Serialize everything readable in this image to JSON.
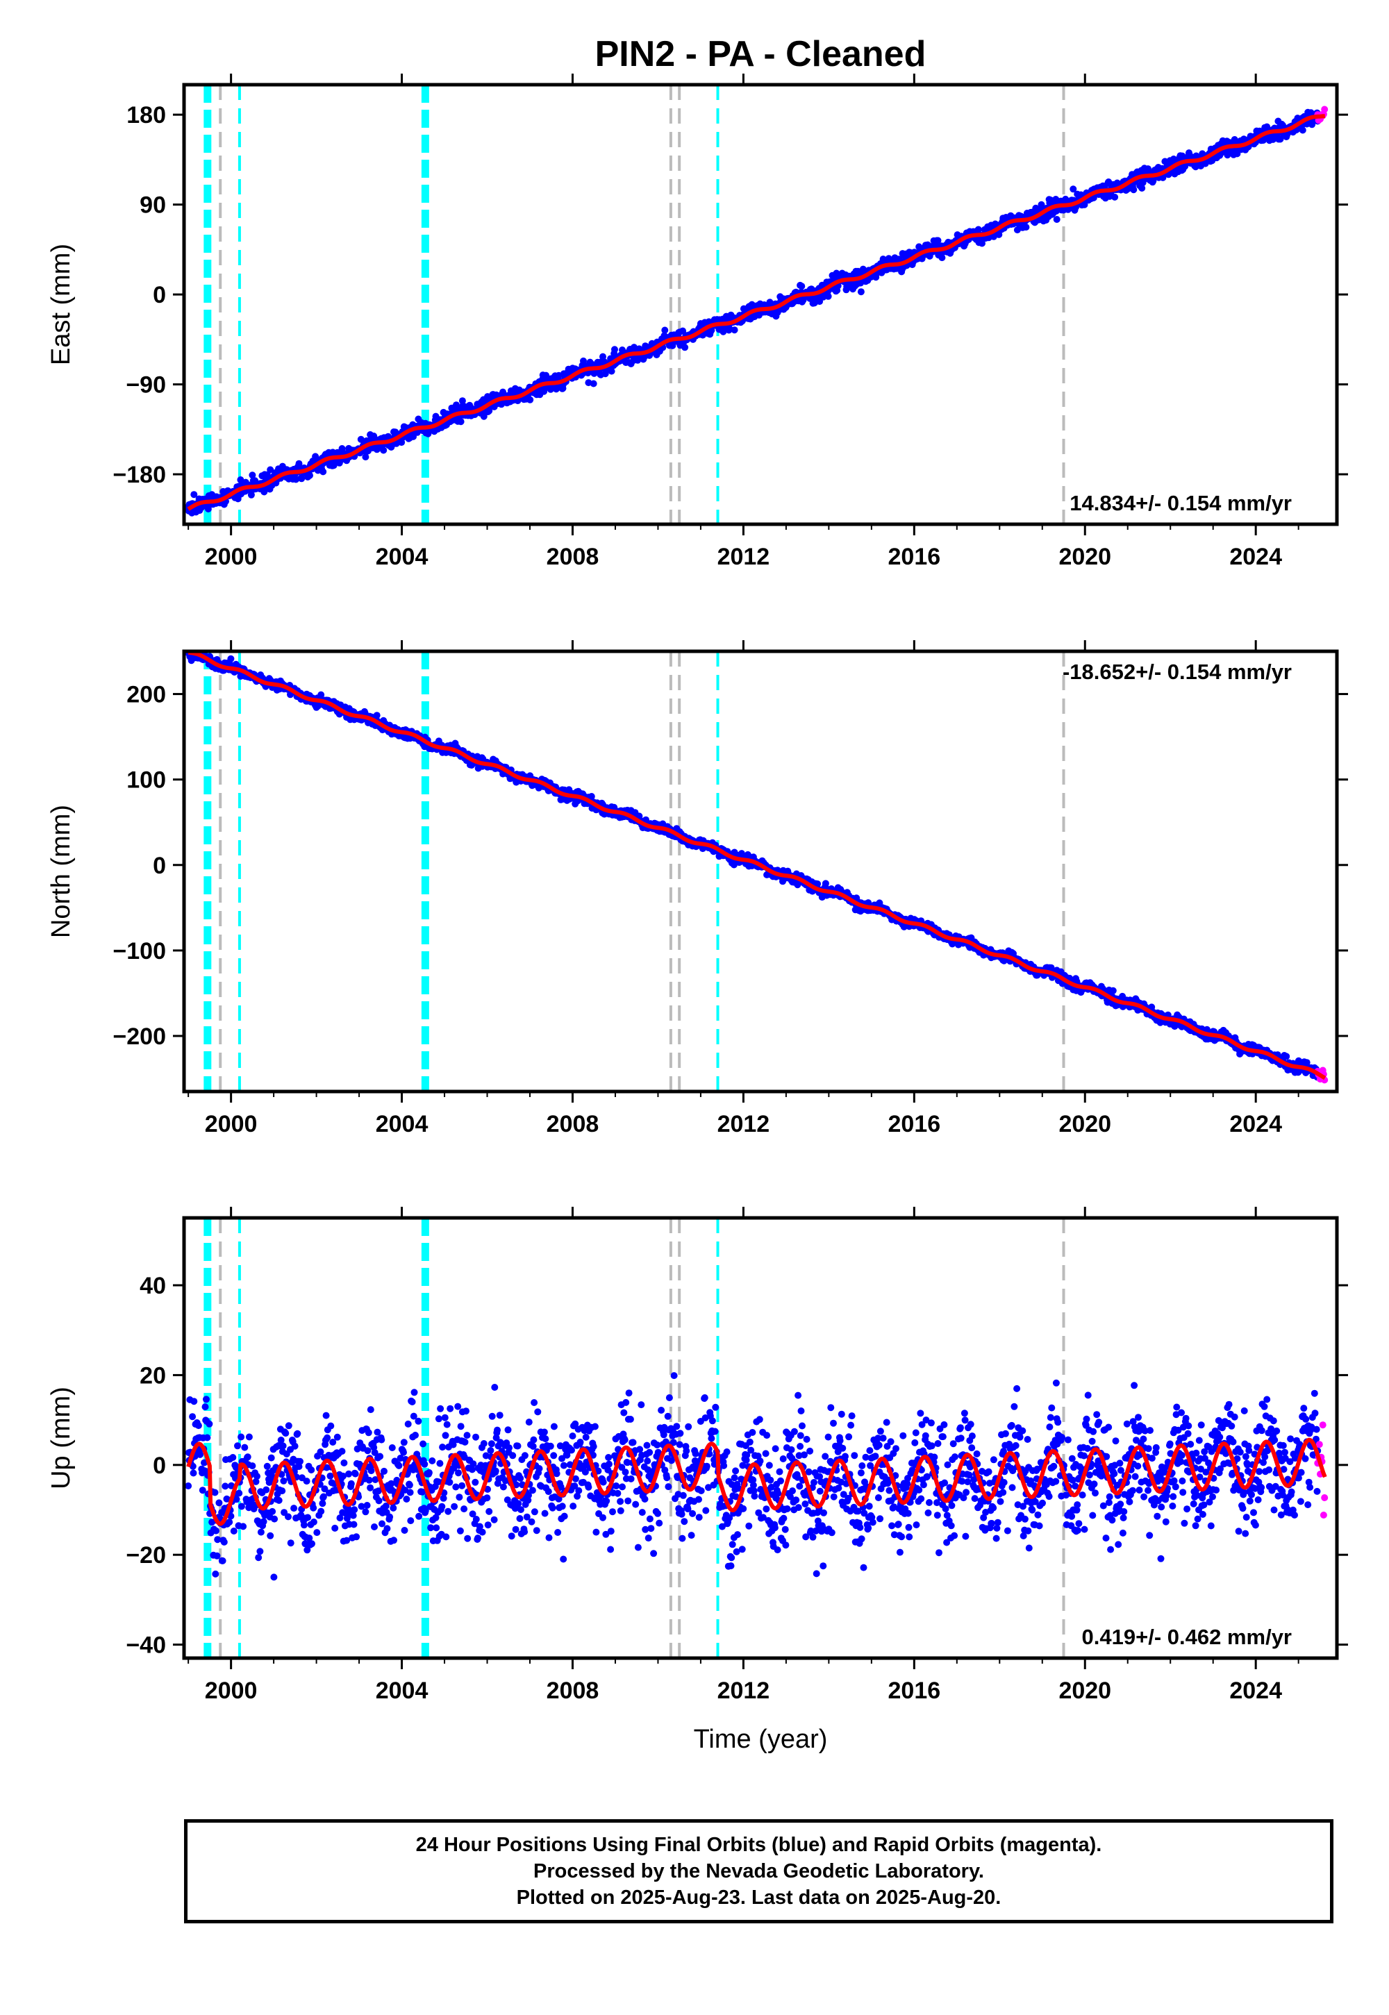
{
  "figure": {
    "title": "PIN2  - PA - Cleaned",
    "xlabel": "Time (year)",
    "caption": [
      "24 Hour Positions Using Final Orbits (blue) and Rapid Orbits (magenta).",
      "Processed by the Nevada Geodetic Laboratory.",
      "Plotted on 2025-Aug-23. Last data on 2025-Aug-20."
    ],
    "colors": {
      "final_orbits": "#0000ff",
      "rapid_orbits": "#ff00ff",
      "model": "#ff0000",
      "event_cyan": "#00ffff",
      "event_gray": "#bbbbbb"
    }
  },
  "chart_data": [
    {
      "type": "scatter",
      "ylabel": "East (mm)",
      "xlim": [
        1998.9,
        2025.9
      ],
      "ylim": [
        -230,
        210
      ],
      "yticks": [
        -180,
        -90,
        0,
        90,
        180
      ],
      "xticks": [
        2000,
        2004,
        2008,
        2012,
        2016,
        2020,
        2024
      ],
      "rate_label": "14.834+/- 0.154 mm/yr",
      "rate_position": "bottom-right",
      "trend": {
        "rate": 14.834,
        "value_2000": -200,
        "seasonal_amplitude": 2,
        "noise": 4
      },
      "series": [
        {
          "name": "final orbits",
          "color": "#0000ff",
          "x_start": 1999.0,
          "x_end": 2025.45
        },
        {
          "name": "rapid orbits",
          "color": "#ff00ff",
          "x_start": 2025.45,
          "x_end": 2025.62
        }
      ]
    },
    {
      "type": "scatter",
      "ylabel": "North (mm)",
      "xlim": [
        1998.9,
        2025.9
      ],
      "ylim": [
        -265,
        250
      ],
      "yticks": [
        -200,
        -100,
        0,
        100,
        200
      ],
      "xticks": [
        2000,
        2004,
        2008,
        2012,
        2016,
        2020,
        2024
      ],
      "rate_label": "-18.652+/- 0.154 mm/yr",
      "rate_position": "top-right",
      "trend": {
        "rate": -18.652,
        "value_2000": 230,
        "seasonal_amplitude": 2,
        "noise": 3
      },
      "series": [
        {
          "name": "final orbits",
          "color": "#0000ff",
          "x_start": 1999.0,
          "x_end": 2025.45
        },
        {
          "name": "rapid orbits",
          "color": "#ff00ff",
          "x_start": 2025.45,
          "x_end": 2025.62
        }
      ]
    },
    {
      "type": "scatter",
      "ylabel": "Up (mm)",
      "xlim": [
        1998.9,
        2025.9
      ],
      "ylim": [
        -43,
        55
      ],
      "yticks": [
        -40,
        -20,
        0,
        20,
        40
      ],
      "xticks": [
        2000,
        2004,
        2008,
        2012,
        2016,
        2020,
        2024
      ],
      "rate_label": "0.419+/- 0.462 mm/yr",
      "rate_position": "bottom-right",
      "trend": {
        "rate": 0.419,
        "value_2000": 0,
        "seasonal_amplitude": 5,
        "noise": 6
      },
      "offsets": [
        {
          "x": 1999.5,
          "value": -8
        },
        {
          "x": 2000.2,
          "value": 3
        },
        {
          "x": 2011.4,
          "value": -5
        }
      ],
      "series": [
        {
          "name": "final orbits",
          "color": "#0000ff",
          "x_start": 1999.0,
          "x_end": 2025.45
        },
        {
          "name": "rapid orbits",
          "color": "#ff00ff",
          "x_start": 2025.45,
          "x_end": 2025.62
        }
      ]
    }
  ],
  "events": [
    {
      "x": 1999.45,
      "color": "#00ffff",
      "style": "thick"
    },
    {
      "x": 1999.75,
      "color": "#bbbbbb",
      "style": "thin"
    },
    {
      "x": 2000.2,
      "color": "#00ffff",
      "style": "thin"
    },
    {
      "x": 2004.55,
      "color": "#00ffff",
      "style": "thick"
    },
    {
      "x": 2010.3,
      "color": "#bbbbbb",
      "style": "thin"
    },
    {
      "x": 2010.5,
      "color": "#bbbbbb",
      "style": "thin"
    },
    {
      "x": 2011.4,
      "color": "#00ffff",
      "style": "thin"
    },
    {
      "x": 2019.5,
      "color": "#bbbbbb",
      "style": "thin"
    }
  ]
}
